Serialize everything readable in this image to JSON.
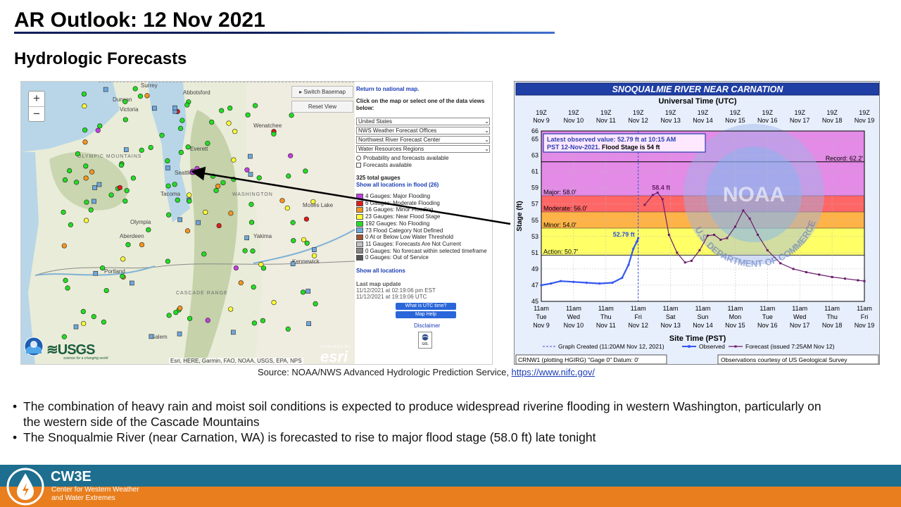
{
  "slide": {
    "title": "AR Outlook: 12 Nov 2021",
    "subtitle": "Hydrologic Forecasts",
    "source_prefix": "Source: NOAA/NWS Advanced Hydrologic Prediction Service, ",
    "source_link": "https://www.nifc.gov/",
    "bullets": [
      "The combination of heavy rain and moist soil conditions is expected to produce widespread riverine flooding in western Washington, particularly on the western side of the Cascade Mountains",
      "The Snoqualmie River (near Carnation, WA) is forecasted to rise to major flood stage (58.0 ft) late tonight"
    ]
  },
  "map": {
    "zoom_in": "+",
    "zoom_out": "−",
    "switch_basemap": "Switch Basemap",
    "reset_view": "Reset View",
    "attribution": "Esri, HERE, Garmin, FAO, NOAA, USGS, EPA, NPS",
    "logo_text": "esri",
    "powered_by": "POWERED BY",
    "usgs": "≋USGS",
    "usgs_tag": "science for a changing world",
    "place_labels": [
      "Surrey",
      "Abbotsford",
      "Duncan",
      "Everett",
      "Seattle",
      "Tacoma",
      "WASHINGTON",
      "OLYMPIC MOUNTAINS",
      "Aberdeen",
      "Olympia",
      "Yakima",
      "Kennewick",
      "Portland",
      "Salem",
      "CASCADE RANGE",
      "Victoria",
      "Wenatchee",
      "Moses Lake"
    ]
  },
  "side_panel": {
    "return_link": "Return to national map.",
    "instruction": "Click on the map or select one of the data views below:",
    "selects": [
      "United States",
      "NWS Weather Forecast Offices",
      "Northwest River Forecast Center",
      "Water Resources Regions"
    ],
    "option_prob": "Probability and forecasts available",
    "option_fcst": "Forecasts available",
    "total_gauges": "325 total gauges",
    "show_flood_link": "Show all locations in flood (26)",
    "legend": [
      {
        "label": "4 Gauges: Major Flooding",
        "color": "#c23fe0"
      },
      {
        "label": "6 Gauges: Moderate Flooding",
        "color": "#e01b1b"
      },
      {
        "label": "16 Gauges: Minor Flooding",
        "color": "#f5951f"
      },
      {
        "label": "23 Gauges: Near Flood Stage",
        "color": "#ffff33"
      },
      {
        "label": "192 Gauges: No Flooding",
        "color": "#22dd22"
      },
      {
        "label": "73 Flood Category Not Defined",
        "color": "#6fa8dc"
      },
      {
        "label": "0 At or Below Low Water Threshold",
        "color": "#a0522d"
      },
      {
        "label": "11 Gauges: Forecasts Are Not Current",
        "color": "#c0c0c0"
      },
      {
        "label": "0 Gauges: No forecast within selected timeframe",
        "color": "#888888"
      },
      {
        "label": "0 Gauges: Out of Service",
        "color": "#555555"
      }
    ],
    "show_all_link": "Show all locations",
    "last_update_label": "Last map update",
    "update_est": "11/12/2021 at 02:19:06 pm EST",
    "update_utc": "11/12/2021 at 19:19:06 UTC",
    "utc_button": "What is UTC time?",
    "help_button": "Map Help",
    "disclaimer": "Disclaimer",
    "srl_label": "SRL"
  },
  "hydrograph": {
    "title": "SNOQUALMIE RIVER NEAR CARNATION",
    "top_axis_title": "Universal Time (UTC)",
    "bottom_axis_title": "Site Time (PST)",
    "y_axis_title": "Stage (ft)",
    "top_ticks": [
      [
        "19Z",
        "Nov 9"
      ],
      [
        "19Z",
        "Nov 10"
      ],
      [
        "19Z",
        "Nov 11"
      ],
      [
        "19Z",
        "Nov 12"
      ],
      [
        "19Z",
        "Nov 13"
      ],
      [
        "19Z",
        "Nov 14"
      ],
      [
        "19Z",
        "Nov 15"
      ],
      [
        "19Z",
        "Nov 16"
      ],
      [
        "19Z",
        "Nov 17"
      ],
      [
        "19Z",
        "Nov 18"
      ],
      [
        "19Z",
        "Nov 19"
      ]
    ],
    "bottom_ticks": [
      [
        "11am",
        "Tue",
        "Nov 9"
      ],
      [
        "11am",
        "Wed",
        "Nov 10"
      ],
      [
        "11am",
        "Thu",
        "Nov 11"
      ],
      [
        "11am",
        "Fri",
        "Nov 12"
      ],
      [
        "11am",
        "Sat",
        "Nov 13"
      ],
      [
        "11am",
        "Sun",
        "Nov 14"
      ],
      [
        "11am",
        "Mon",
        "Nov 15"
      ],
      [
        "11am",
        "Tue",
        "Nov 16"
      ],
      [
        "11am",
        "Wed",
        "Nov 17"
      ],
      [
        "11am",
        "Thu",
        "Nov 18"
      ],
      [
        "11am",
        "Fri",
        "Nov 19"
      ]
    ],
    "y_ticks": [
      45,
      47,
      49,
      51,
      53,
      55,
      57,
      59,
      61,
      63,
      65,
      66
    ],
    "ylim": [
      45,
      66
    ],
    "zones": [
      {
        "label": "Major: 58.0'",
        "from": 58.0,
        "to": 66,
        "color": "#e38be6"
      },
      {
        "label": "Moderate: 56.0'",
        "from": 56.0,
        "to": 58.0,
        "color": "#ff6666"
      },
      {
        "label": "Minor: 54.0'",
        "from": 54.0,
        "to": 56.0,
        "color": "#ffb347"
      },
      {
        "label": "Action: 50.7'",
        "from": 50.7,
        "to": 54.0,
        "color": "#ffff66"
      }
    ],
    "record_label": "Record: 62.2'",
    "record_value": 62.2,
    "info_box_line1": "Latest observed value: 52.79 ft at 10:15 AM",
    "info_box_line2_a": "PST 12-Nov-2021. ",
    "info_box_line2_b": "Flood Stage is 54 ft",
    "observed_label": "52.79 ft",
    "peak_label": "58.4 ft",
    "observed": [
      [
        0,
        47.0
      ],
      [
        0.3,
        47.2
      ],
      [
        0.6,
        47.5
      ],
      [
        1.0,
        47.4
      ],
      [
        1.4,
        47.3
      ],
      [
        1.8,
        47.2
      ],
      [
        2.2,
        47.3
      ],
      [
        2.5,
        47.9
      ],
      [
        2.7,
        49.5
      ],
      [
        2.85,
        51.5
      ],
      [
        2.95,
        52.3
      ],
      [
        3.0,
        52.79
      ]
    ],
    "forecast": [
      [
        3.2,
        56.9
      ],
      [
        3.45,
        58.1
      ],
      [
        3.6,
        58.4
      ],
      [
        3.75,
        57.6
      ],
      [
        3.95,
        53.2
      ],
      [
        4.2,
        51.0
      ],
      [
        4.45,
        49.8
      ],
      [
        4.65,
        50.0
      ],
      [
        4.9,
        51.3
      ],
      [
        5.15,
        53.1
      ],
      [
        5.35,
        53.2
      ],
      [
        5.55,
        52.6
      ],
      [
        5.75,
        52.8
      ],
      [
        6.0,
        54.2
      ],
      [
        6.25,
        56.2
      ],
      [
        6.45,
        55.2
      ],
      [
        6.7,
        53.2
      ],
      [
        7.0,
        51.3
      ],
      [
        7.4,
        49.7
      ],
      [
        7.8,
        49.0
      ],
      [
        8.2,
        48.6
      ],
      [
        8.6,
        48.3
      ],
      [
        9.0,
        48.0
      ],
      [
        9.4,
        47.8
      ],
      [
        9.8,
        47.6
      ],
      [
        10.0,
        47.5
      ]
    ],
    "legend_created": "Graph Created (11:20AM Nov 12, 2021)",
    "legend_observed": "Observed",
    "legend_forecast": "Forecast (issued 7:25AM Nov 12)",
    "footer_left": "CRNW1 (plotting HGIRG) \"Gage 0\" Datum: 0'",
    "footer_right": "Observations courtesy of US Geological Survey",
    "watermark_text": "NOAA",
    "watermark_arc": "U.S. DEPARTMENT OF COMMERCE"
  },
  "footer": {
    "brand": "CW3E",
    "line1": "Center for Western Weather",
    "line2": "and Water Extremes"
  }
}
